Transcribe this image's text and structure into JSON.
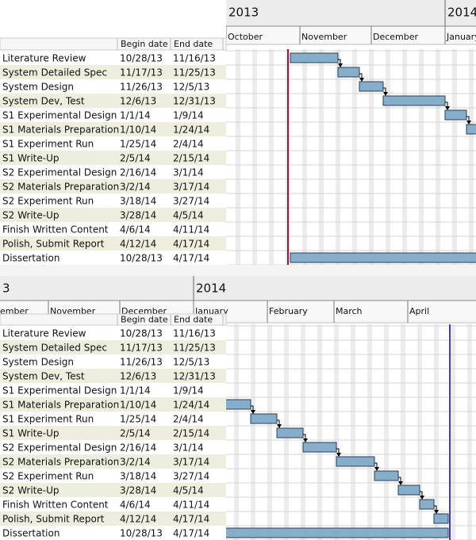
{
  "panels": [
    {
      "years": [
        "2013",
        "2014"
      ],
      "months": [
        "October",
        "November",
        "December",
        "January"
      ],
      "table": {
        "headers": [
          "Begin date",
          "End date"
        ],
        "rows": [
          [
            "Literature Review",
            "10/28/13",
            "11/16/13"
          ],
          [
            "System Detailed Spec",
            "11/17/13",
            "11/25/13"
          ],
          [
            "System Design",
            "11/26/13",
            "12/5/13"
          ],
          [
            "System Dev, Test",
            "12/6/13",
            "12/31/13"
          ],
          [
            "S1 Experimental Design",
            "1/1/14",
            "1/9/14"
          ],
          [
            "S1 Materials Preparation",
            "1/10/14",
            "1/24/14"
          ],
          [
            "S1 Experiment Run",
            "1/25/14",
            "2/4/14"
          ],
          [
            "S1 Write-Up",
            "2/5/14",
            "2/15/14"
          ],
          [
            "S2 Experimental Design",
            "2/16/14",
            "3/1/14"
          ],
          [
            "S2 Materials Preparation",
            "3/2/14",
            "3/17/14"
          ],
          [
            "S2 Experiment Run",
            "3/18/14",
            "3/27/14"
          ],
          [
            "S2 Write-Up",
            "3/28/14",
            "4/5/14"
          ],
          [
            "Finish Written Content",
            "4/6/14",
            "4/11/14"
          ],
          [
            "Polish, Submit Report",
            "4/12/14",
            "4/17/14"
          ],
          [
            "Dissertation",
            "10/28/13",
            "4/17/14"
          ]
        ]
      }
    },
    {
      "years": [
        "3",
        "2014"
      ],
      "months": [
        "ember",
        "November",
        "December",
        "January",
        "February",
        "March",
        "April"
      ],
      "table": {
        "headers": [
          "Begin date",
          "End date"
        ],
        "rows": [
          [
            "Literature Review",
            "10/28/13",
            "11/16/13"
          ],
          [
            "System Detailed Spec",
            "11/17/13",
            "11/25/13"
          ],
          [
            "System Design",
            "11/26/13",
            "12/5/13"
          ],
          [
            "System Dev, Test",
            "12/6/13",
            "12/31/13"
          ],
          [
            "S1 Experimental Design",
            "1/1/14",
            "1/9/14"
          ],
          [
            "S1 Materials Preparation",
            "1/10/14",
            "1/24/14"
          ],
          [
            "S1 Experiment Run",
            "1/25/14",
            "2/4/14"
          ],
          [
            "S1 Write-Up",
            "2/5/14",
            "2/15/14"
          ],
          [
            "S2 Experimental Design",
            "2/16/14",
            "3/1/14"
          ],
          [
            "S2 Materials Preparation",
            "3/2/14",
            "3/17/14"
          ],
          [
            "S2 Experiment Run",
            "3/18/14",
            "3/27/14"
          ],
          [
            "S2 Write-Up",
            "3/28/14",
            "4/5/14"
          ],
          [
            "Finish Written Content",
            "4/6/14",
            "4/11/14"
          ],
          [
            "Polish, Submit Report",
            "4/12/14",
            "4/17/14"
          ],
          [
            "Dissertation",
            "10/28/13",
            "4/17/14"
          ]
        ]
      }
    }
  ]
}
